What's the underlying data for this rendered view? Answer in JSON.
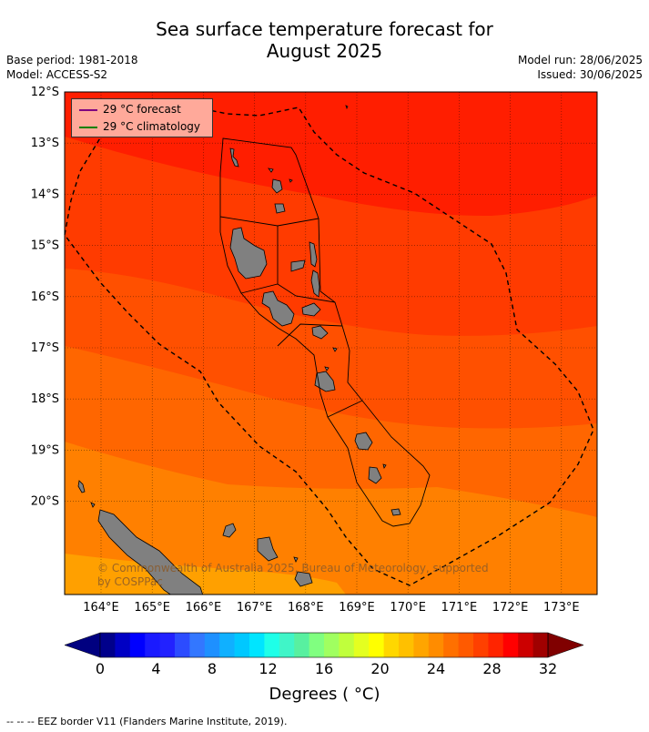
{
  "title_line1": "Sea surface temperature forecast for",
  "title_line2": "August 2025",
  "meta": {
    "base_period": "Base period: 1981-2018",
    "model": "Model: ACCESS-S2",
    "model_run": "Model run: 28/06/2025",
    "issued": "Issued: 30/06/2025"
  },
  "legend": {
    "forecast_label": "29 °C  forecast",
    "forecast_color": "#800080",
    "climatology_label": "29 °C  climatology",
    "climatology_color": "#008000"
  },
  "lat_labels": [
    "12°S",
    "13°S",
    "14°S",
    "15°S",
    "16°S",
    "17°S",
    "18°S",
    "19°S",
    "20°S"
  ],
  "lon_labels": [
    "164°E",
    "165°E",
    "166°E",
    "167°E",
    "168°E",
    "169°E",
    "170°E",
    "171°E",
    "172°E",
    "173°E"
  ],
  "copyright_line1": "© Commonwealth of Australia 2025, Bureau of Meteorology, supported",
  "copyright_line2": "by COSPPac",
  "colorbar": {
    "ticks": [
      "0",
      "4",
      "8",
      "12",
      "16",
      "20",
      "24",
      "28",
      "32"
    ],
    "label": "Degrees ( °C)",
    "colors": [
      "#00008b",
      "#0000c4",
      "#0000ff",
      "#1a1aff",
      "#2222ff",
      "#2c4cff",
      "#3377ff",
      "#1e90ff",
      "#10b0ff",
      "#00c8ff",
      "#00e5ff",
      "#1effe8",
      "#40f5c8",
      "#58f0a0",
      "#80ff80",
      "#a0ff60",
      "#c0ff3c",
      "#e4ff20",
      "#ffff00",
      "#ffd700",
      "#ffc000",
      "#ffa500",
      "#ff8c00",
      "#ff7000",
      "#ff5a00",
      "#ff4000",
      "#ff2400",
      "#ff0000",
      "#cc0000",
      "#a00000"
    ],
    "low_color": "#000080",
    "high_color": "#800000"
  },
  "footer": "--  --  -- EEZ border V11 (Flanders Marine Institute, 2019)."
}
